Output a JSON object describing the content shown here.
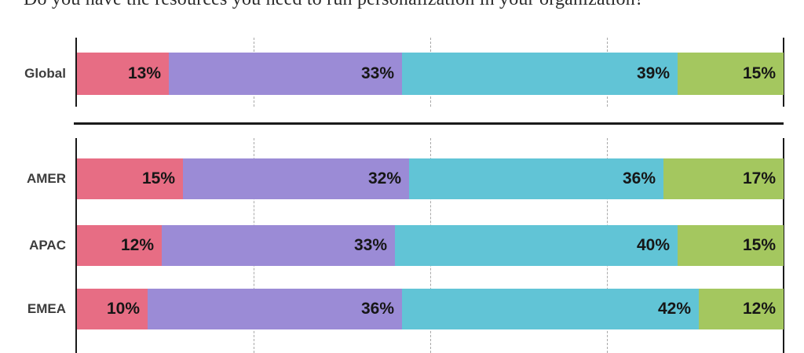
{
  "title": "Do you have the resources you need to run personalization in your organization?",
  "chart_data": {
    "type": "bar",
    "orientation": "horizontal",
    "stacked": true,
    "value_suffix": "%",
    "xlim": [
      0,
      100
    ],
    "gridlines_pct": [
      25,
      50,
      75
    ],
    "grid_style": "dashed-vertical",
    "legend": "none",
    "categories": [
      "Global",
      "AMER",
      "APAC",
      "EMEA"
    ],
    "series_order": [
      "pink",
      "purple",
      "teal",
      "green"
    ],
    "series_colors": {
      "pink": "#E76D84",
      "purple": "#9B8BD6",
      "teal": "#61C4D6",
      "green": "#A4C75F"
    },
    "series": [
      {
        "name": "pink",
        "values": [
          13,
          15,
          12,
          10
        ]
      },
      {
        "name": "purple",
        "values": [
          33,
          32,
          33,
          36
        ]
      },
      {
        "name": "teal",
        "values": [
          39,
          36,
          40,
          42
        ]
      },
      {
        "name": "green",
        "values": [
          15,
          17,
          15,
          12
        ]
      }
    ],
    "groups": [
      {
        "name": "global",
        "rows": [
          {
            "label": "Global",
            "values": [
              13,
              33,
              39,
              15
            ]
          }
        ]
      },
      {
        "name": "regions",
        "rows": [
          {
            "label": "AMER",
            "values": [
              15,
              32,
              36,
              17
            ]
          },
          {
            "label": "APAC",
            "values": [
              12,
              33,
              40,
              15
            ]
          },
          {
            "label": "EMEA",
            "values": [
              10,
              36,
              42,
              12
            ]
          }
        ]
      }
    ]
  },
  "colors": {
    "background": "#FFFFFF",
    "axis_line": "#1A1A1A",
    "separator_line": "#1A1A1A",
    "gridline": "#A9A9A9",
    "category_label": "#3D3D3D",
    "value_label": "#161616",
    "title_text": "#2B2B2B"
  }
}
